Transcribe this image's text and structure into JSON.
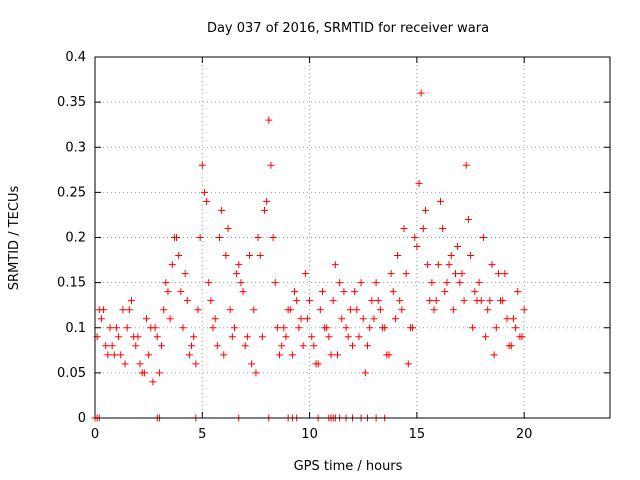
{
  "chart_data": {
    "type": "scatter",
    "title": "Day 037 of 2016, SRMTID for receiver wara",
    "xlabel": "GPS time / hours",
    "ylabel": "SRMTID / TECUs",
    "xlim": [
      0,
      24
    ],
    "ylim": [
      0,
      0.4
    ],
    "xticks": [
      0,
      5,
      10,
      15,
      20
    ],
    "xtick_labels": [
      "0",
      "5",
      "10",
      "15",
      "20"
    ],
    "yticks": [
      0,
      0.05,
      0.1,
      0.15,
      0.2,
      0.25,
      0.3,
      0.35,
      0.4
    ],
    "ytick_labels": [
      "0",
      "0.05",
      "0.1",
      "0.15",
      "0.2",
      "0.25",
      "0.3",
      "0.35",
      "0.4"
    ],
    "grid": true,
    "marker": "+",
    "marker_color": "#ff0000",
    "series": [
      {
        "name": "SRMTID",
        "x": [
          0.1,
          0.3,
          0.5,
          0.7,
          0.9,
          1.1,
          1.3,
          1.5,
          1.7,
          1.9,
          2.1,
          2.3,
          2.5,
          2.7,
          2.9,
          3.1,
          3.3,
          3.5,
          3.7,
          3.9,
          4.1,
          4.3,
          4.5,
          4.7,
          4.9,
          5.0,
          5.1,
          5.3,
          5.5,
          5.7,
          5.9,
          6.1,
          6.3,
          6.5,
          6.7,
          6.9,
          7.1,
          7.3,
          7.5,
          7.7,
          7.9,
          8.1,
          8.3,
          8.5,
          8.7,
          8.9,
          9.1,
          9.3,
          9.5,
          9.7,
          9.9,
          10.1,
          10.3,
          10.5,
          10.7,
          10.9,
          11.1,
          11.3,
          11.5,
          11.7,
          11.9,
          12.1,
          12.3,
          12.5,
          12.7,
          12.9,
          13.1,
          13.3,
          13.5,
          13.7,
          13.9,
          14.1,
          14.3,
          14.5,
          14.7,
          14.9,
          15.1,
          15.2,
          15.3,
          15.5,
          15.7,
          15.9,
          16.1,
          16.3,
          16.5,
          16.7,
          16.9,
          17.1,
          17.3,
          17.5,
          17.7,
          17.9,
          18.1,
          18.3,
          18.5,
          18.7,
          18.9,
          19.1,
          19.3,
          19.5,
          19.7,
          19.9,
          20.0,
          0.2,
          0.6,
          1.0,
          1.4,
          1.8,
          2.2,
          2.6,
          3.0,
          3.4,
          3.8,
          4.2,
          4.6,
          5.2,
          5.6,
          6.0,
          6.4,
          6.8,
          7.2,
          7.6,
          8.0,
          8.2,
          8.4,
          8.8,
          9.2,
          9.6,
          10.0,
          10.4,
          10.8,
          11.2,
          11.6,
          12.0,
          12.4,
          12.8,
          13.2,
          13.6,
          14.0,
          14.4,
          14.8,
          15.0,
          15.4,
          15.8,
          16.2,
          16.6,
          17.0,
          17.4,
          17.8,
          18.2,
          18.6,
          19.0,
          19.4,
          19.8,
          0.4,
          0.8,
          1.2,
          1.6,
          2.0,
          2.4,
          2.8,
          3.2,
          3.6,
          4.0,
          4.4,
          4.8,
          5.4,
          5.8,
          6.2,
          6.6,
          7.0,
          7.4,
          7.8,
          8.6,
          9.0,
          9.4,
          9.8,
          10.2,
          10.6,
          11.0,
          11.4,
          11.8,
          12.2,
          12.6,
          13.0,
          13.4,
          13.8,
          14.2,
          14.6,
          15.6,
          16.0,
          16.4,
          16.8,
          17.2,
          17.6,
          18.0,
          18.4,
          18.8,
          19.2,
          19.6,
          0.0,
          0.1,
          0.2,
          2.9,
          3.0,
          4.7,
          6.7,
          8.1,
          9.0,
          9.2,
          9.4,
          10.4,
          10.9,
          11.0,
          11.1,
          11.2,
          11.4,
          11.7,
          12.0,
          12.4,
          12.7,
          13.1,
          13.5
        ],
        "y": [
          0.09,
          0.11,
          0.08,
          0.1,
          0.07,
          0.09,
          0.12,
          0.1,
          0.13,
          0.08,
          0.06,
          0.05,
          0.07,
          0.04,
          0.09,
          0.08,
          0.15,
          0.11,
          0.2,
          0.18,
          0.1,
          0.13,
          0.08,
          0.06,
          0.2,
          0.28,
          0.25,
          0.15,
          0.1,
          0.08,
          0.23,
          0.18,
          0.12,
          0.1,
          0.17,
          0.14,
          0.09,
          0.06,
          0.05,
          0.18,
          0.23,
          0.33,
          0.2,
          0.1,
          0.08,
          0.09,
          0.12,
          0.14,
          0.1,
          0.08,
          0.11,
          0.09,
          0.06,
          0.12,
          0.1,
          0.09,
          0.13,
          0.07,
          0.11,
          0.1,
          0.12,
          0.14,
          0.09,
          0.11,
          0.08,
          0.13,
          0.15,
          0.12,
          0.1,
          0.07,
          0.14,
          0.18,
          0.12,
          0.16,
          0.1,
          0.2,
          0.26,
          0.36,
          0.21,
          0.17,
          0.15,
          0.13,
          0.24,
          0.14,
          0.17,
          0.12,
          0.19,
          0.16,
          0.28,
          0.18,
          0.14,
          0.15,
          0.2,
          0.12,
          0.17,
          0.1,
          0.13,
          0.16,
          0.08,
          0.11,
          0.14,
          0.09,
          0.12,
          0.12,
          0.07,
          0.1,
          0.06,
          0.09,
          0.05,
          0.1,
          0.05,
          0.14,
          0.2,
          0.16,
          0.09,
          0.24,
          0.11,
          0.07,
          0.09,
          0.15,
          0.18,
          0.2,
          0.24,
          0.28,
          0.15,
          0.1,
          0.07,
          0.11,
          0.13,
          0.06,
          0.1,
          0.17,
          0.14,
          0.08,
          0.15,
          0.1,
          0.13,
          0.07,
          0.11,
          0.21,
          0.1,
          0.19,
          0.23,
          0.12,
          0.21,
          0.18,
          0.15,
          0.22,
          0.13,
          0.09,
          0.07,
          0.13,
          0.08,
          0.09,
          0.12,
          0.08,
          0.07,
          0.12,
          0.09,
          0.11,
          0.1,
          0.12,
          0.17,
          0.14,
          0.07,
          0.12,
          0.13,
          0.2,
          0.21,
          0.16,
          0.08,
          0.12,
          0.09,
          0.07,
          0.12,
          0.13,
          0.16,
          0.08,
          0.14,
          0.07,
          0.15,
          0.09,
          0.12,
          0.05,
          0.11,
          0.1,
          0.16,
          0.13,
          0.06,
          0.13,
          0.17,
          0.15,
          0.16,
          0.13,
          0.1,
          0.13,
          0.13,
          0.16,
          0.11,
          0.1,
          0.0,
          0.0,
          0.0,
          0.0,
          0.0,
          0.0,
          0.0,
          0.0,
          0.0,
          0.0,
          0.0,
          0.0,
          0.0,
          0.0,
          0.0,
          0.0,
          0.0,
          0.0,
          0.0,
          0.0,
          0.0,
          0.0,
          0.0
        ]
      }
    ]
  }
}
